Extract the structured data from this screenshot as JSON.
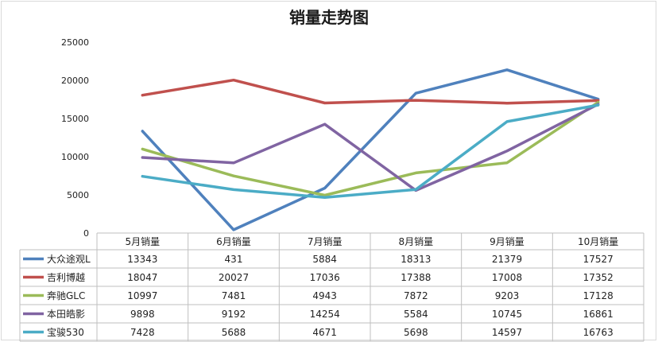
{
  "chart_data": {
    "type": "line",
    "title": "销量走势图",
    "categories": [
      "5月销量",
      "6月销量",
      "7月销量",
      "8月销量",
      "9月销量",
      "10月销量"
    ],
    "ylim": [
      0,
      25000
    ],
    "yticks": [
      0,
      5000,
      10000,
      15000,
      20000,
      25000
    ],
    "grid": false,
    "legend": "data-table-left",
    "series": [
      {
        "name": "大众途观L",
        "color": "#4F81BD",
        "values": [
          13343,
          431,
          5884,
          18313,
          21379,
          17527
        ]
      },
      {
        "name": "吉利博越",
        "color": "#C0504D",
        "values": [
          18047,
          20027,
          17036,
          17388,
          17008,
          17352
        ]
      },
      {
        "name": "奔驰GLC",
        "color": "#9BBB59",
        "values": [
          10997,
          7481,
          4943,
          7872,
          9203,
          17128
        ]
      },
      {
        "name": "本田皓影",
        "color": "#8064A2",
        "values": [
          9898,
          9192,
          14254,
          5584,
          10745,
          16861
        ]
      },
      {
        "name": "宝骏530",
        "color": "#4BACC6",
        "values": [
          7428,
          5688,
          4671,
          5698,
          14597,
          16763
        ]
      }
    ]
  }
}
